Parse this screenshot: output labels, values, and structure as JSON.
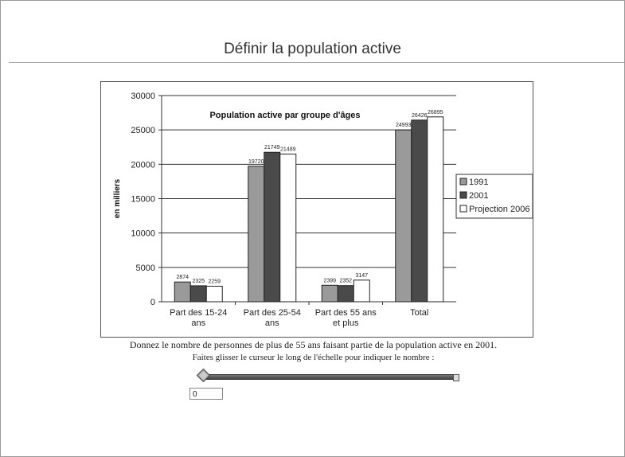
{
  "page": {
    "title": "Définir la population active",
    "question": "Donnez le nombre de personnes de plus de 55 ans faisant partie de la population active en 2001.",
    "instruction": "Faites glisser le curseur le long de l'échelle pour indiquer le nombre :"
  },
  "slider": {
    "value": "0",
    "position": 0
  },
  "colors": {
    "1991": "#9a9a9a",
    "2001": "#4a4a4a",
    "Projection 2006": "#ffffff"
  },
  "chart_data": {
    "type": "bar",
    "title": "Population active par groupe d'âges",
    "xlabel": "",
    "ylabel": "en milliers",
    "ylim": [
      0,
      30000
    ],
    "yticks": [
      "0",
      "5000",
      "10000",
      "15000",
      "20000",
      "25000",
      "30000"
    ],
    "grid": true,
    "legend_position": "right",
    "categories": [
      [
        "Part des 15-24",
        "ans"
      ],
      [
        "Part des 25-54",
        "ans"
      ],
      [
        "Part des 55 ans",
        "et plus"
      ],
      [
        "Total"
      ]
    ],
    "series": [
      {
        "name": "1991",
        "values": [
          2874,
          19720,
          2399,
          24993
        ]
      },
      {
        "name": "2001",
        "values": [
          2325,
          21749,
          2352,
          26426
        ]
      },
      {
        "name": "Projection 2006",
        "values": [
          2259,
          21489,
          3147,
          26895
        ]
      }
    ]
  }
}
